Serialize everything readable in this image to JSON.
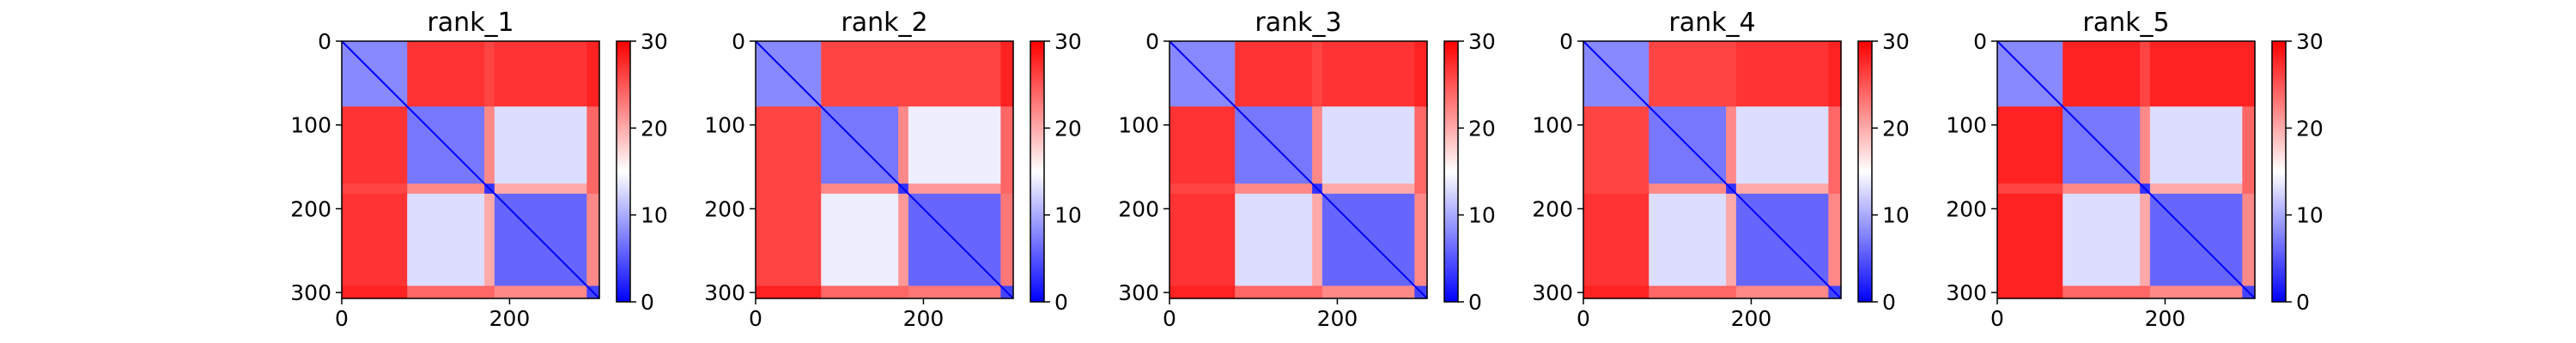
{
  "chart_data": [
    {
      "type": "heatmap",
      "title": "rank_1",
      "xlim": [
        0,
        307
      ],
      "ylim": [
        307,
        0
      ],
      "xticks": [
        0,
        200
      ],
      "yticks": [
        0,
        100,
        200,
        300
      ],
      "colorbar": {
        "min": 0,
        "max": 30,
        "ticks": [
          0,
          10,
          20,
          30
        ],
        "colormap": "bwr"
      },
      "blocks": [
        [
          0,
          78
        ],
        [
          78,
          170
        ],
        [
          170,
          182
        ],
        [
          182,
          292
        ],
        [
          292,
          307
        ]
      ],
      "block_values": [
        [
          8,
          27,
          26,
          27,
          28
        ],
        [
          27,
          7,
          22,
          13,
          24
        ],
        [
          26,
          22,
          3,
          20,
          24
        ],
        [
          27,
          13,
          20,
          6,
          22
        ],
        [
          28,
          24,
          24,
          22,
          4
        ]
      ]
    },
    {
      "type": "heatmap",
      "title": "rank_2",
      "xlim": [
        0,
        307
      ],
      "ylim": [
        307,
        0
      ],
      "xticks": [
        0,
        200
      ],
      "yticks": [
        0,
        100,
        200,
        300
      ],
      "colorbar": {
        "min": 0,
        "max": 30,
        "ticks": [
          0,
          10,
          20,
          30
        ],
        "colormap": "bwr"
      },
      "blocks": [
        [
          0,
          78
        ],
        [
          78,
          170
        ],
        [
          170,
          182
        ],
        [
          182,
          292
        ],
        [
          292,
          307
        ]
      ],
      "block_values": [
        [
          8,
          26,
          26,
          26,
          28
        ],
        [
          26,
          7,
          22,
          14,
          24
        ],
        [
          26,
          22,
          3,
          21,
          24
        ],
        [
          26,
          14,
          21,
          6,
          23
        ],
        [
          28,
          24,
          24,
          23,
          4
        ]
      ]
    },
    {
      "type": "heatmap",
      "title": "rank_3",
      "xlim": [
        0,
        307
      ],
      "ylim": [
        307,
        0
      ],
      "xticks": [
        0,
        200
      ],
      "yticks": [
        0,
        100,
        200,
        300
      ],
      "colorbar": {
        "min": 0,
        "max": 30,
        "ticks": [
          0,
          10,
          20,
          30
        ],
        "colormap": "bwr"
      },
      "blocks": [
        [
          0,
          78
        ],
        [
          78,
          170
        ],
        [
          170,
          182
        ],
        [
          182,
          292
        ],
        [
          292,
          307
        ]
      ],
      "block_values": [
        [
          8,
          27,
          26,
          27,
          28
        ],
        [
          27,
          7,
          22,
          13,
          24
        ],
        [
          26,
          22,
          3,
          20,
          24
        ],
        [
          27,
          13,
          20,
          6,
          22
        ],
        [
          28,
          24,
          24,
          22,
          4
        ]
      ]
    },
    {
      "type": "heatmap",
      "title": "rank_4",
      "xlim": [
        0,
        307
      ],
      "ylim": [
        307,
        0
      ],
      "xticks": [
        0,
        200
      ],
      "yticks": [
        0,
        100,
        200,
        300
      ],
      "colorbar": {
        "min": 0,
        "max": 30,
        "ticks": [
          0,
          10,
          20,
          30
        ],
        "colormap": "bwr"
      },
      "blocks": [
        [
          0,
          78
        ],
        [
          78,
          170
        ],
        [
          170,
          182
        ],
        [
          182,
          292
        ],
        [
          292,
          307
        ]
      ],
      "block_values": [
        [
          8,
          26,
          26,
          27,
          28
        ],
        [
          26,
          7,
          22,
          13,
          24
        ],
        [
          26,
          22,
          3,
          20,
          24
        ],
        [
          27,
          13,
          20,
          6,
          22
        ],
        [
          28,
          24,
          24,
          22,
          4
        ]
      ]
    },
    {
      "type": "heatmap",
      "title": "rank_5",
      "xlim": [
        0,
        307
      ],
      "ylim": [
        307,
        0
      ],
      "xticks": [
        0,
        200
      ],
      "yticks": [
        0,
        100,
        200,
        300
      ],
      "colorbar": {
        "min": 0,
        "max": 30,
        "ticks": [
          0,
          10,
          20,
          30
        ],
        "colormap": "bwr"
      },
      "blocks": [
        [
          0,
          78
        ],
        [
          78,
          170
        ],
        [
          170,
          182
        ],
        [
          182,
          292
        ],
        [
          292,
          307
        ]
      ],
      "block_values": [
        [
          8,
          28,
          26,
          28,
          28
        ],
        [
          28,
          7,
          22,
          13,
          24
        ],
        [
          26,
          22,
          3,
          20,
          24
        ],
        [
          28,
          13,
          20,
          6,
          22
        ],
        [
          28,
          24,
          24,
          22,
          4
        ]
      ]
    }
  ]
}
